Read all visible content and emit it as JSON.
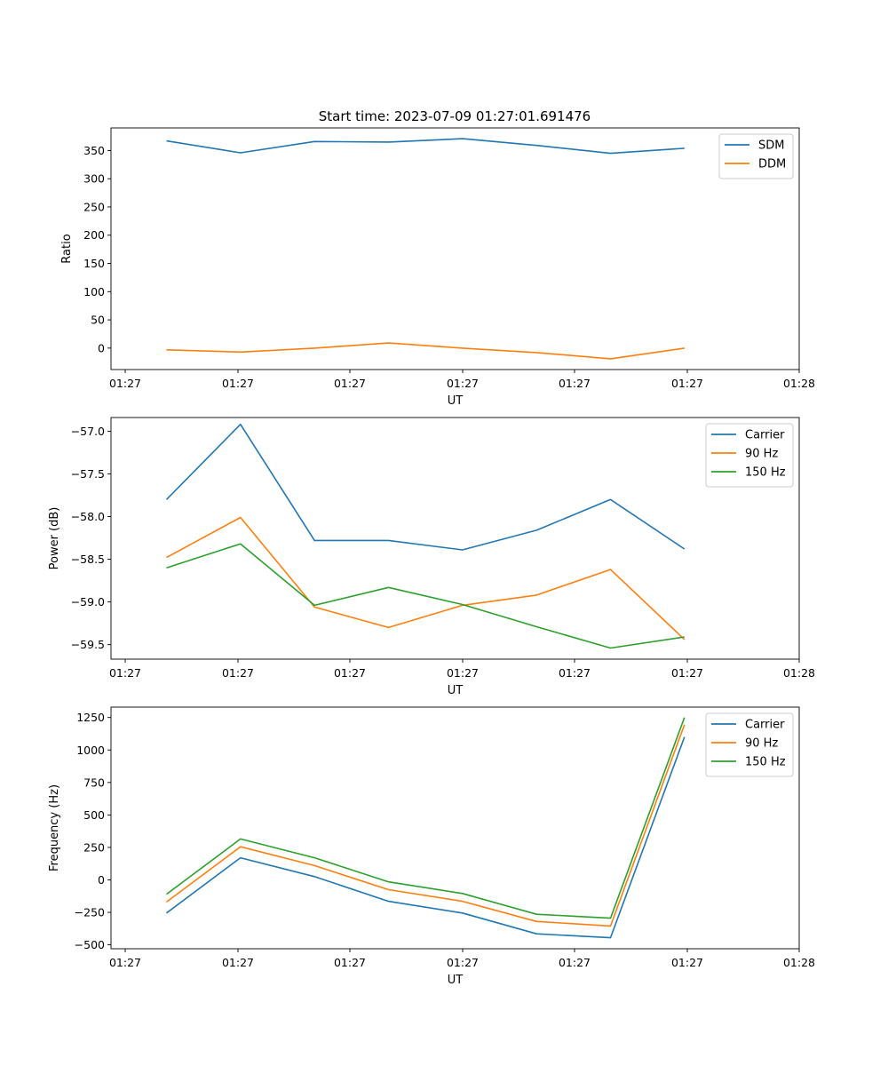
{
  "figure_title": "Start time: 2023-07-09 01:27:01.691476",
  "chart_data": [
    {
      "type": "line",
      "xlabel": "UT",
      "ylabel": "Ratio",
      "xticks": [
        "01:27",
        "01:27",
        "01:27",
        "01:27",
        "01:27",
        "01:27",
        "01:28"
      ],
      "yticks": [
        0,
        50,
        100,
        150,
        200,
        250,
        300,
        350
      ],
      "ylim": [
        -38,
        390
      ],
      "xlim": [
        -0.5,
        8.8
      ],
      "x": [
        0.25,
        1.25,
        2.25,
        3.25,
        4.25,
        5.25,
        6.25,
        7.25
      ],
      "legend": "top-right",
      "series": [
        {
          "name": "SDM",
          "color": "#1f77b4",
          "values": [
            367,
            346,
            366,
            365,
            371,
            359,
            345,
            354
          ]
        },
        {
          "name": "DDM",
          "color": "#ff7f0e",
          "values": [
            -3,
            -7,
            0,
            9,
            0,
            -8,
            -19,
            0
          ]
        }
      ]
    },
    {
      "type": "line",
      "xlabel": "UT",
      "ylabel": "Power (dB)",
      "xticks": [
        "01:27",
        "01:27",
        "01:27",
        "01:27",
        "01:27",
        "01:27",
        "01:28"
      ],
      "yticks": [
        -57.0,
        -57.5,
        -58.0,
        -58.5,
        -59.0,
        -59.5
      ],
      "ytick_labels": [
        "−57.0",
        "−57.5",
        "−58.0",
        "−58.5",
        "−59.0",
        "−59.5"
      ],
      "ylim": [
        -59.67,
        -56.84
      ],
      "xlim": [
        -0.5,
        8.8
      ],
      "x": [
        0.25,
        1.25,
        2.25,
        3.25,
        4.25,
        5.25,
        6.25,
        7.25
      ],
      "legend": "top-right",
      "series": [
        {
          "name": "Carrier",
          "color": "#1f77b4",
          "values": [
            -57.8,
            -56.92,
            -58.28,
            -58.28,
            -58.39,
            -58.16,
            -57.8,
            -58.38
          ]
        },
        {
          "name": "90 Hz",
          "color": "#ff7f0e",
          "values": [
            -58.48,
            -58.01,
            -59.06,
            -59.3,
            -59.04,
            -58.92,
            -58.62,
            -59.44
          ]
        },
        {
          "name": "150 Hz",
          "color": "#2ca02c",
          "values": [
            -58.6,
            -58.32,
            -59.04,
            -58.83,
            -59.03,
            -59.29,
            -59.54,
            -59.41
          ]
        }
      ]
    },
    {
      "type": "line",
      "xlabel": "UT",
      "ylabel": "Frequency (Hz)",
      "xticks": [
        "01:27",
        "01:27",
        "01:27",
        "01:27",
        "01:27",
        "01:27",
        "01:28"
      ],
      "yticks": [
        -500,
        -250,
        0,
        250,
        500,
        750,
        1000,
        1250
      ],
      "ytick_labels": [
        "−500",
        "−250",
        "0",
        "250",
        "500",
        "750",
        "1000",
        "1250"
      ],
      "ylim": [
        -530,
        1330
      ],
      "xlim": [
        -0.5,
        8.8
      ],
      "x": [
        0.25,
        1.25,
        2.25,
        3.25,
        4.25,
        5.25,
        6.25,
        7.25
      ],
      "legend": "top-right",
      "series": [
        {
          "name": "Carrier",
          "color": "#1f77b4",
          "values": [
            -255,
            170,
            25,
            -165,
            -255,
            -415,
            -445,
            1100
          ]
        },
        {
          "name": "90 Hz",
          "color": "#ff7f0e",
          "values": [
            -170,
            255,
            110,
            -75,
            -165,
            -320,
            -355,
            1195
          ]
        },
        {
          "name": "150 Hz",
          "color": "#2ca02c",
          "values": [
            -110,
            315,
            170,
            -15,
            -105,
            -265,
            -295,
            1250
          ]
        }
      ]
    }
  ]
}
